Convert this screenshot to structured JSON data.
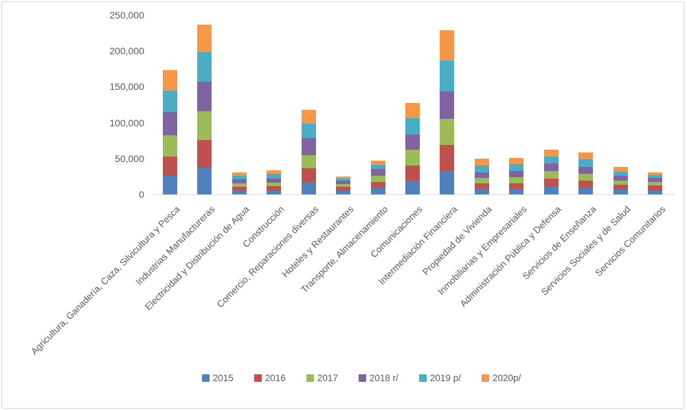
{
  "style": {
    "background": "#ffffff",
    "border_color": "#d4d4d4",
    "axis_line_color": "#d9d9d9",
    "text_color": "#595959"
  },
  "chart_data": {
    "type": "bar",
    "stacked": true,
    "title": "",
    "xlabel": "",
    "ylabel": "",
    "grid": false,
    "legend_position": "bottom",
    "ylim": [
      0,
      250000
    ],
    "ytick_interval": 50000,
    "ytick_labels": [
      "0",
      "50,000",
      "100,000",
      "150,000",
      "200,000",
      "250,000"
    ],
    "categories": [
      "Agricultura, Ganadería, Caza, Silvicultura y Pesca",
      "Industrias Manufactureras",
      "Electricidad y Distribución de Agua",
      "Construcción",
      "Comercio, Reparaciones diversas",
      "Hoteles y Restaurantes",
      "Transporte, Almacenamiento",
      "Comunicaciones",
      "Intermediación Financiera",
      "Propiedad de Vivienda",
      "Inmobiliarias y Empresariales",
      "Administración Pública y Defensa",
      "Servicios de Enseñanza",
      "Servicios Sociales y de Salud",
      "Servicios Comunitarios"
    ],
    "series": [
      {
        "name": "2015",
        "color": "#4F81BD",
        "values": [
          25500,
          37000,
          5000,
          5000,
          17500,
          5500,
          8500,
          19500,
          33000,
          7500,
          8000,
          11500,
          10000,
          7000,
          5500
        ]
      },
      {
        "name": "2016",
        "color": "#C0504D",
        "values": [
          27000,
          39000,
          5500,
          6500,
          19000,
          5000,
          9000,
          20500,
          35500,
          8000,
          7500,
          10500,
          9000,
          6500,
          6500
        ]
      },
      {
        "name": "2017",
        "color": "#9BBB59",
        "values": [
          29500,
          40000,
          5000,
          5000,
          18000,
          4000,
          8500,
          22500,
          37000,
          7500,
          8000,
          10500,
          9500,
          5500,
          5500
        ]
      },
      {
        "name": "2018 r/",
        "color": "#8064A2",
        "values": [
          33000,
          41000,
          5500,
          6000,
          24000,
          5000,
          9500,
          20500,
          38500,
          8000,
          9500,
          10500,
          9500,
          6500,
          5500
        ]
      },
      {
        "name": "2019 p/",
        "color": "#4BACC6",
        "values": [
          30000,
          41000,
          5000,
          6500,
          20000,
          3000,
          6000,
          23000,
          43000,
          9500,
          9000,
          10000,
          10500,
          6500,
          4000
        ]
      },
      {
        "name": "2020p/",
        "color": "#F79646",
        "values": [
          28500,
          39000,
          5000,
          4500,
          19000,
          2000,
          5000,
          21500,
          42000,
          9500,
          8500,
          9500,
          10000,
          6500,
          4000
        ]
      }
    ]
  }
}
